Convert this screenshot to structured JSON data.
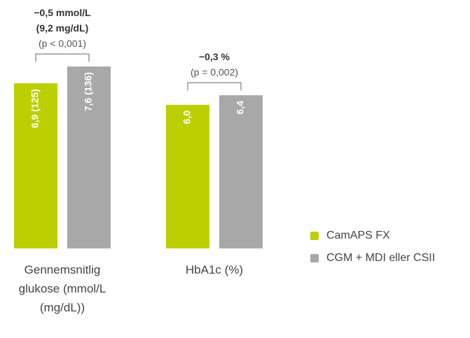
{
  "chart_data": {
    "type": "bar",
    "categories": [
      "Gennemsnitlig glukose (mmol/L (mg/dL))",
      "HbA1c (%)"
    ],
    "series": [
      {
        "name": "CamAPS FX",
        "color": "#bccf00",
        "values": [
          6.9,
          6.0
        ],
        "value_labels": [
          "6,9 (125)",
          "6,0"
        ]
      },
      {
        "name": "CGM + MDI eller CSII",
        "color": "#a8a8a8",
        "values": [
          7.6,
          6.4
        ],
        "value_labels": [
          "7,6 (136)",
          "6,4"
        ]
      }
    ],
    "annotations": [
      {
        "difference": [
          "−0,5 mmol/L",
          "(9,2 mg/dL)"
        ],
        "p": "(p < 0,001)"
      },
      {
        "difference": [
          "−0,3 %"
        ],
        "p": "(p = 0,002)"
      }
    ],
    "legend": "right"
  }
}
